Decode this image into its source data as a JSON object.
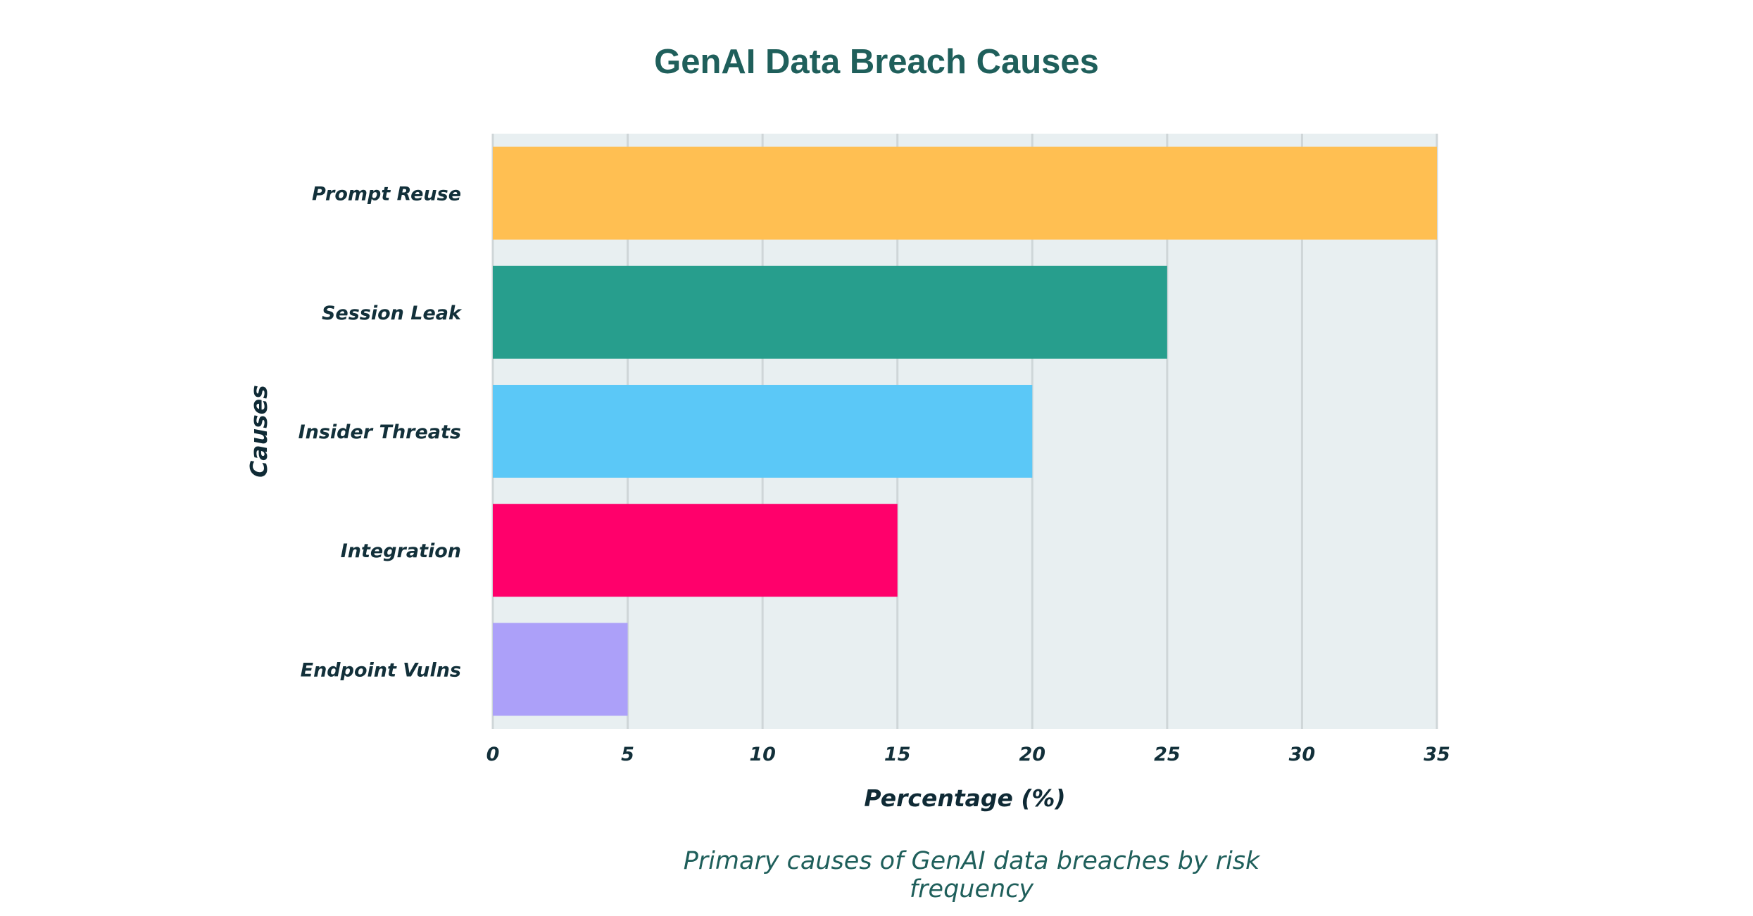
{
  "chart_data": {
    "type": "bar",
    "orientation": "horizontal",
    "title": "GenAI Data Breach Causes",
    "caption": "Primary causes of GenAI data breaches by risk frequency",
    "xlabel": "Percentage (%)",
    "ylabel": "Causes",
    "categories": [
      "Prompt Reuse",
      "Session Leak",
      "Insider Threats",
      "Integration",
      "Endpoint Vulns"
    ],
    "values": [
      35,
      25,
      20,
      15,
      5
    ],
    "colors": [
      "#ffbf52",
      "#279e8d",
      "#5bc8f7",
      "#ff006b",
      "#aca0f9"
    ],
    "xlim": [
      0,
      35
    ],
    "xticks": [
      0,
      5,
      10,
      15,
      20,
      25,
      30,
      35
    ],
    "grid": true,
    "plot_background": "#e8eff1",
    "grid_color": "#cfd6d8"
  }
}
